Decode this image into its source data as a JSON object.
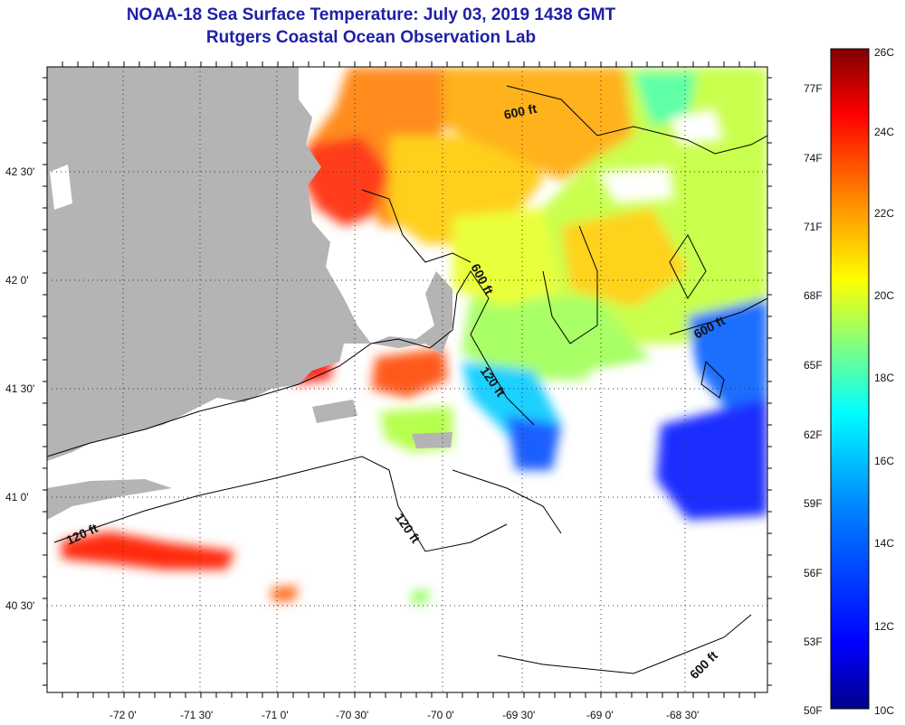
{
  "title": {
    "line1": "NOAA-18 Sea Surface Temperature:  July 03, 2019 1438 GMT",
    "line2": "Rutgers Coastal Ocean Observation Lab"
  },
  "map": {
    "lon_labels": [
      "-72 0'",
      "-71 30'",
      "-71 0'",
      "-70 30'",
      "-70 0'",
      "-69 30'",
      "-69 0'",
      "-68 30'"
    ],
    "lat_labels": [
      "42 30'",
      "42 0'",
      "41 30'",
      "41 0'",
      "40 30'"
    ],
    "contour_labels": [
      "600 ft",
      "600 ft",
      "600 ft",
      "600 ft",
      "120 ft",
      "120 ft",
      "120 ft"
    ]
  },
  "colorbar": {
    "celsius_labels": [
      "26C",
      "24C",
      "22C",
      "20C",
      "18C",
      "16C",
      "14C",
      "12C",
      "10C"
    ],
    "fahrenheit_labels": [
      "77F",
      "74F",
      "71F",
      "68F",
      "65F",
      "62F",
      "59F",
      "56F",
      "53F",
      "50F"
    ],
    "colors": [
      "#00008b",
      "#0000ff",
      "#0080ff",
      "#00ffff",
      "#80ff80",
      "#ffff00",
      "#ff8000",
      "#ff0000",
      "#800000"
    ]
  },
  "colors": {
    "land": "#b4b4b4",
    "title": "#1f1fa8"
  }
}
